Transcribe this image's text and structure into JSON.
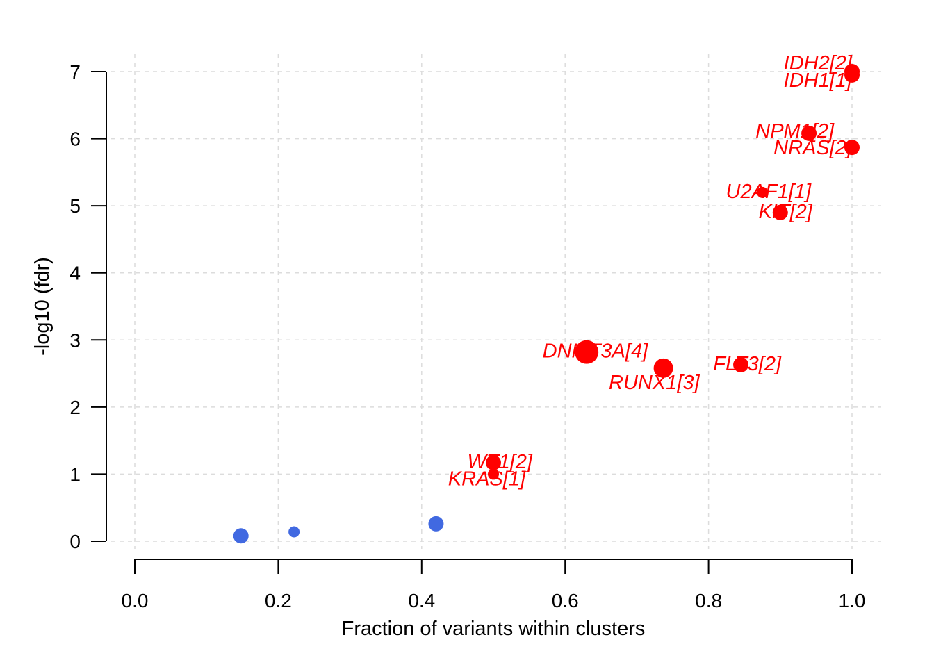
{
  "chart_data": {
    "type": "scatter",
    "title": "",
    "xlabel": "Fraction of variants within clusters",
    "ylabel": "-log10 (fdr)",
    "xlim": [
      0.0,
      1.0
    ],
    "ylim": [
      0,
      7
    ],
    "xticks": [
      "0.0",
      "0.2",
      "0.4",
      "0.6",
      "0.8",
      "1.0"
    ],
    "yticks": [
      "0",
      "1",
      "2",
      "3",
      "4",
      "5",
      "6",
      "7"
    ],
    "grid": true,
    "colors": {
      "significant": "#ff0000",
      "non_significant": "#4169e1"
    },
    "points": [
      {
        "label": "IDH1[1]",
        "x": 1.0,
        "y": 7.0,
        "size": 2,
        "color": "#ff0000"
      },
      {
        "label": "IDH2[2]",
        "x": 1.0,
        "y": 6.95,
        "size": 2,
        "color": "#ff0000"
      },
      {
        "label": "NPM1[2]",
        "x": 0.94,
        "y": 6.08,
        "size": 2,
        "color": "#ff0000"
      },
      {
        "label": "NRAS[2]",
        "x": 1.0,
        "y": 5.87,
        "size": 2,
        "color": "#ff0000"
      },
      {
        "label": "U2AF1[1]",
        "x": 0.875,
        "y": 5.2,
        "size": 1,
        "color": "#ff0000"
      },
      {
        "label": "KIT[2]",
        "x": 0.9,
        "y": 4.9,
        "size": 2,
        "color": "#ff0000"
      },
      {
        "label": "DNMT3A[4]",
        "x": 0.63,
        "y": 2.82,
        "size": 4,
        "color": "#ff0000"
      },
      {
        "label": "RUNX1[3]",
        "x": 0.737,
        "y": 2.58,
        "size": 3,
        "color": "#ff0000"
      },
      {
        "label": "FLT3[2]",
        "x": 0.845,
        "y": 2.63,
        "size": 2,
        "color": "#ff0000"
      },
      {
        "label": "WT1[2]",
        "x": 0.5,
        "y": 1.17,
        "size": 2,
        "color": "#ff0000"
      },
      {
        "label": "KRAS[1]",
        "x": 0.5,
        "y": 1.0,
        "size": 1,
        "color": "#ff0000"
      },
      {
        "label": "",
        "x": 0.148,
        "y": 0.08,
        "size": 2,
        "color": "#4169e1"
      },
      {
        "label": "",
        "x": 0.222,
        "y": 0.14,
        "size": 1,
        "color": "#4169e1"
      },
      {
        "label": "",
        "x": 0.42,
        "y": 0.26,
        "size": 2,
        "color": "#4169e1"
      }
    ]
  }
}
